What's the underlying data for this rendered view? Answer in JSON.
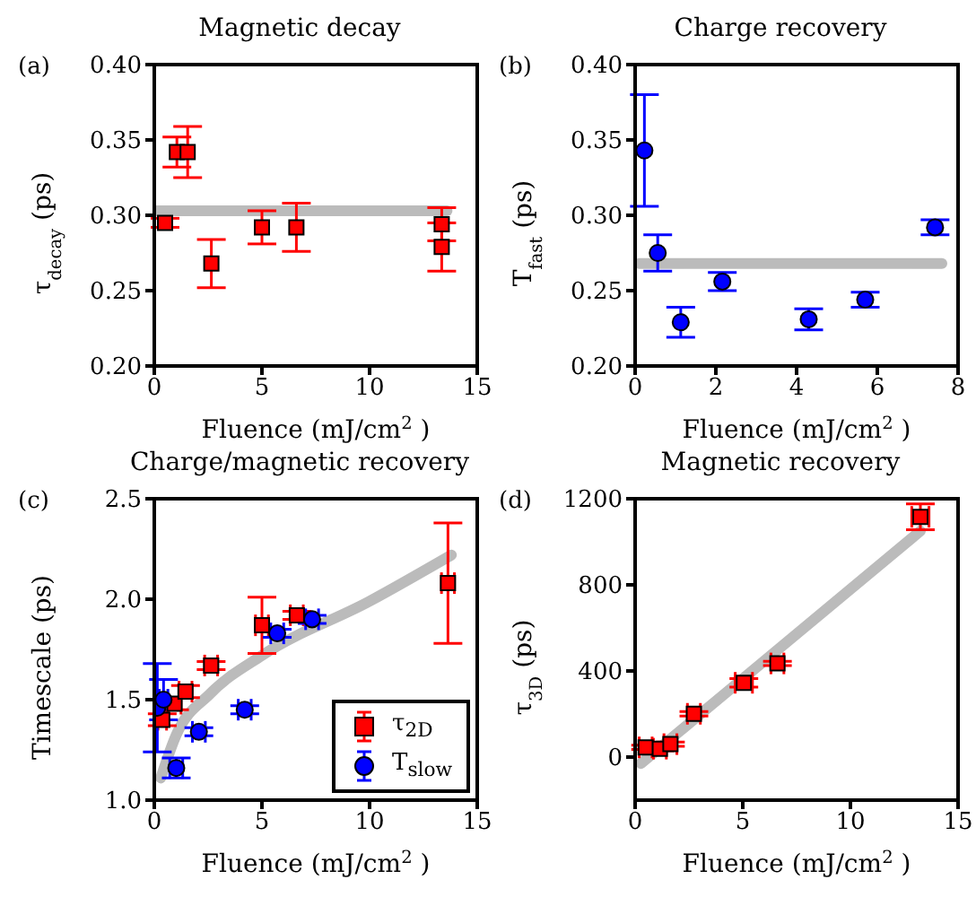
{
  "chart_data": [
    {
      "type": "scatter",
      "title": "Magnetic decay",
      "xlabel": "Fluence (mJ/cm$^{2}$ )",
      "ylabel": "τ$_{decay}$ (ps)",
      "annotations": [
        "(a)"
      ],
      "xlim": [
        0,
        15
      ],
      "xticks": [
        0,
        5,
        10,
        15
      ],
      "ylim": [
        0.2,
        0.4
      ],
      "yticks": [
        {
          "value": 0.2,
          "label": "0.20"
        },
        {
          "value": 0.25,
          "label": "0.25"
        },
        {
          "value": 0.3,
          "label": "0.30"
        },
        {
          "value": 0.35,
          "label": "0.35"
        },
        {
          "value": 0.4,
          "label": "0.40"
        }
      ],
      "series": [
        {
          "type": "line",
          "color": "#bbbbbb",
          "x": [
            0,
            13.6
          ],
          "values": [
            0.303,
            0.303
          ],
          "marker": "none"
        },
        {
          "type": "scatter",
          "color": "#ff0000",
          "marker": "square",
          "x": [
            0.5,
            1.05,
            1.55,
            2.65,
            5.0,
            6.6,
            13.35,
            13.35
          ],
          "values": [
            0.295,
            0.342,
            0.342,
            0.268,
            0.292,
            0.292,
            0.294,
            0.279
          ],
          "errors": [
            0.003,
            0.01,
            0.017,
            0.016,
            0.011,
            0.016,
            0.011,
            0.016
          ]
        }
      ]
    },
    {
      "type": "scatter",
      "title": "Charge recovery",
      "xlabel": "Fluence (mJ/cm$^{2}$ )",
      "ylabel": "T$_{fast}$ (ps)",
      "annotations": [
        "(b)"
      ],
      "xlim": [
        0,
        8
      ],
      "xticks": [
        0,
        2,
        4,
        6,
        8
      ],
      "ylim": [
        0.2,
        0.4
      ],
      "yticks": [
        {
          "value": 0.2,
          "label": "0.20"
        },
        {
          "value": 0.25,
          "label": "0.25"
        },
        {
          "value": 0.3,
          "label": "0.30"
        },
        {
          "value": 0.35,
          "label": "0.35"
        },
        {
          "value": 0.4,
          "label": "0.40"
        }
      ],
      "series": [
        {
          "type": "line",
          "color": "#bbbbbb",
          "x": [
            0.1,
            7.6
          ],
          "values": [
            0.268,
            0.268
          ],
          "marker": "none"
        },
        {
          "type": "scatter",
          "color": "#0000ff",
          "marker": "circle",
          "x": [
            0.23,
            0.56,
            1.13,
            2.16,
            4.3,
            5.7,
            7.43
          ],
          "values": [
            0.343,
            0.275,
            0.229,
            0.256,
            0.231,
            0.244,
            0.292
          ],
          "errors": [
            0.037,
            0.012,
            0.01,
            0.006,
            0.007,
            0.005,
            0.005
          ]
        }
      ]
    },
    {
      "type": "scatter",
      "title": "Charge/magnetic recovery",
      "xlabel": "Fluence (mJ/cm$^{2}$ )",
      "ylabel": "Timescale (ps)",
      "annotations": [
        "(c)"
      ],
      "legend": "bottom right",
      "xlim": [
        0,
        15
      ],
      "xticks": [
        0,
        5,
        10,
        15
      ],
      "ylim": [
        1.0,
        2.5
      ],
      "yticks": [
        {
          "value": 1.0,
          "label": "1.0"
        },
        {
          "value": 1.5,
          "label": "1.5"
        },
        {
          "value": 2.0,
          "label": "2.0"
        },
        {
          "value": 2.5,
          "label": "2.5"
        }
      ],
      "series": [
        {
          "type": "line",
          "color": "#bbbbbb",
          "x": [
            0.3,
            1,
            2.6,
            5,
            10,
            13.8
          ],
          "values": [
            1.11,
            1.32,
            1.53,
            1.72,
            1.99,
            2.22
          ],
          "marker": "none"
        },
        {
          "type": "scatter",
          "name": "τ$_{2D}$",
          "color": "#ff0000",
          "marker": "square",
          "x": [
            0.37,
            0.94,
            1.45,
            2.64,
            5.0,
            6.62,
            13.64
          ],
          "values": [
            1.4,
            1.48,
            1.54,
            1.67,
            1.87,
            1.92,
            2.08
          ],
          "errors": [
            0.03,
            0.03,
            0.03,
            0.02,
            0.14,
            0.02,
            0.3
          ],
          "xerrors": [
            0.2,
            0.3,
            0.3,
            0.3,
            0.3,
            0.3,
            0.3
          ]
        },
        {
          "type": "scatter",
          "name": "T$_{slow}$",
          "color": "#0000ff",
          "marker": "circle",
          "x": [
            0.14,
            0.43,
            1.02,
            2.07,
            4.2,
            5.71,
            7.33
          ],
          "values": [
            1.46,
            1.5,
            1.16,
            1.34,
            1.45,
            1.83,
            1.9
          ],
          "errors": [
            0.22,
            0.1,
            0.05,
            0.02,
            0.02,
            0.02,
            0.02
          ],
          "xerrors": [
            0.1,
            0.2,
            0.3,
            0.3,
            0.3,
            0.3,
            0.3
          ]
        }
      ]
    },
    {
      "type": "scatter",
      "title": "Magnetic recovery",
      "xlabel": "Fluence (mJ/cm$^{2}$ )",
      "ylabel": "τ$_{3D}$ (ps)",
      "annotations": [
        "(d)"
      ],
      "xlim": [
        0,
        15
      ],
      "xticks": [
        0,
        5,
        10,
        15
      ],
      "ylim": [
        -200,
        1200
      ],
      "yticks": [
        0,
        400,
        800,
        1200
      ],
      "series": [
        {
          "type": "line",
          "color": "#bbbbbb",
          "x": [
            0.27,
            13.25
          ],
          "values": [
            -30,
            1050
          ],
          "marker": "none"
        },
        {
          "type": "scatter",
          "color": "#ff0000",
          "marker": "square",
          "x": [
            0.49,
            1.15,
            1.64,
            2.73,
            5.05,
            6.61,
            13.25
          ],
          "values": [
            45,
            39,
            60,
            201,
            345,
            435,
            1116
          ],
          "errors": [
            10,
            10,
            10,
            10,
            20,
            10,
            60
          ],
          "xerrors": [
            0.3,
            0.3,
            0.3,
            0.3,
            0.4,
            0.3,
            0.4
          ]
        }
      ]
    }
  ]
}
